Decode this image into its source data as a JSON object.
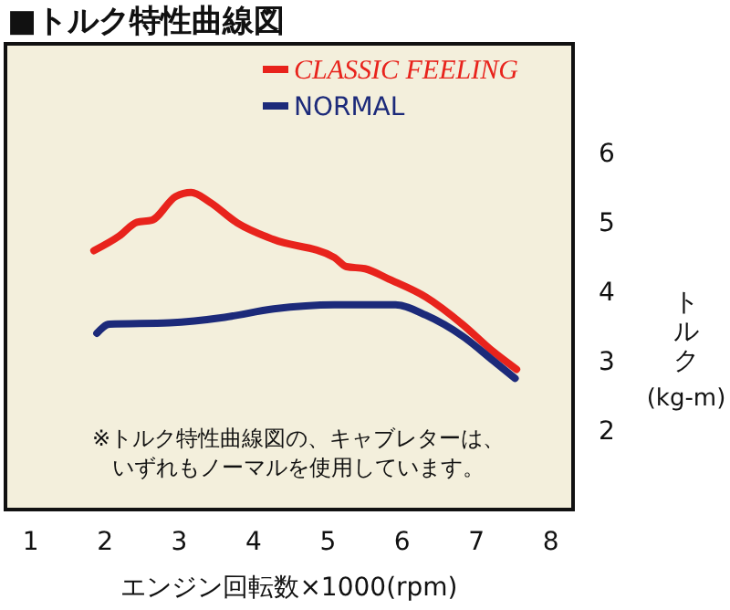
{
  "chart_data": {
    "type": "line",
    "title": "■トルク特性曲線図",
    "xlabel": "エンジン回転数×1000(rpm)",
    "ylabel": "トルク (kg-m)",
    "annotations": [
      "※トルク特性曲線図の、キャブレターは、いずれもノーマルを使用しています。"
    ],
    "xlim": [
      0.66,
      8.3
    ],
    "xticks": [
      1,
      2,
      3,
      4,
      5,
      6,
      7,
      8
    ],
    "ylim": [
      0.86,
      7.57
    ],
    "yticks": [
      2,
      3,
      4,
      5,
      6
    ],
    "grid": false,
    "legend": "top right",
    "marker": "none",
    "line_style": "solid",
    "series": [
      {
        "name": "CLASSIC FEELING",
        "color": "#e8231c",
        "x": [
          1.85,
          2.19,
          2.43,
          2.63,
          2.95,
          3.16,
          3.41,
          3.78,
          4.27,
          5.09,
          5.25,
          5.5,
          5.82,
          6.32,
          6.81,
          7.22,
          7.54
        ],
        "values": [
          4.59,
          4.8,
          5.0,
          5.03,
          5.37,
          5.43,
          5.29,
          4.99,
          4.75,
          4.49,
          4.36,
          4.33,
          4.18,
          3.92,
          3.53,
          3.14,
          2.88
        ]
      },
      {
        "name": "NORMAL",
        "color": "#1c2a7a",
        "x": [
          1.89,
          2.06,
          2.87,
          3.61,
          4.27,
          5.09,
          5.91,
          6.32,
          6.81,
          7.22,
          7.52
        ],
        "values": [
          3.4,
          3.53,
          3.55,
          3.63,
          3.75,
          3.81,
          3.81,
          3.66,
          3.36,
          3.01,
          2.75
        ]
      }
    ]
  }
}
